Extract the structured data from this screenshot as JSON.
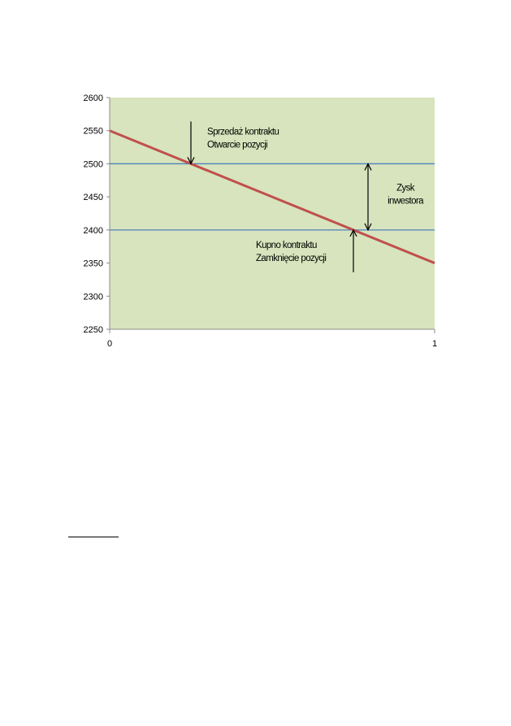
{
  "chart_data": {
    "type": "line",
    "x": [
      0,
      1
    ],
    "xlim": [
      0,
      1
    ],
    "ylim": [
      2250,
      2600
    ],
    "x_ticks": [
      "0",
      "1"
    ],
    "y_ticks": [
      "2250",
      "2300",
      "2350",
      "2400",
      "2450",
      "2500",
      "2550",
      "2600"
    ],
    "series": [
      {
        "values": [
          2550,
          2350
        ],
        "color": "#c0504d"
      }
    ],
    "reference_lines": [
      {
        "y": 2500,
        "color": "#4f81bd"
      },
      {
        "y": 2400,
        "color": "#4f81bd"
      }
    ],
    "plot_background": "#d7e4bd",
    "grid": false,
    "annotations": [
      {
        "lines": [
          "Sprzedaż kontraktu",
          "Otwarcie pozycji"
        ],
        "point": {
          "x": 0.25,
          "y": 2500
        },
        "arrow": "down"
      },
      {
        "lines": [
          "Kupno kontraktu",
          "Zamknięcie pozycji"
        ],
        "point": {
          "x": 0.75,
          "y": 2400
        },
        "arrow": "up"
      },
      {
        "lines": [
          "Zysk",
          "inwestora"
        ],
        "span": {
          "x": 0.795,
          "y_from": 2400,
          "y_to": 2500
        },
        "arrow": "double"
      }
    ]
  }
}
